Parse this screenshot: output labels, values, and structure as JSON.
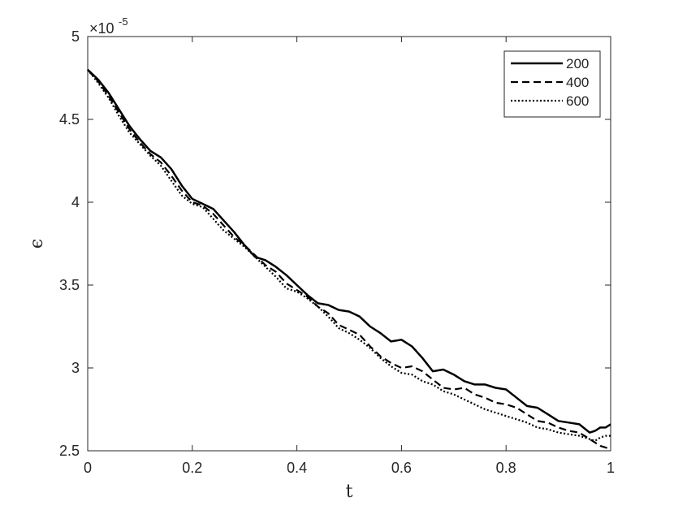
{
  "chart_data": {
    "type": "line",
    "title": "",
    "xlabel": "t",
    "ylabel": "ϵ",
    "exponent_label": "×10",
    "exponent_power": "-5",
    "xlim": [
      0,
      1
    ],
    "ylim": [
      2.5,
      5
    ],
    "x_ticks": [
      0,
      0.2,
      0.4,
      0.6,
      0.8,
      1
    ],
    "x_tick_labels": [
      "0",
      "0.2",
      "0.4",
      "0.6",
      "0.8",
      "1"
    ],
    "y_ticks": [
      2.5,
      3,
      3.5,
      4,
      4.5,
      5
    ],
    "y_tick_labels": [
      "2.5",
      "3",
      "3.5",
      "4",
      "4.5",
      "5"
    ],
    "grid": false,
    "legend_position": "top-right",
    "series": [
      {
        "name": "200",
        "style": "solid",
        "color": "#000000",
        "x": [
          0,
          0.02,
          0.04,
          0.06,
          0.08,
          0.1,
          0.12,
          0.14,
          0.16,
          0.18,
          0.2,
          0.22,
          0.24,
          0.26,
          0.28,
          0.3,
          0.32,
          0.34,
          0.36,
          0.38,
          0.4,
          0.42,
          0.44,
          0.46,
          0.48,
          0.5,
          0.52,
          0.54,
          0.56,
          0.58,
          0.6,
          0.62,
          0.64,
          0.66,
          0.68,
          0.7,
          0.72,
          0.74,
          0.76,
          0.78,
          0.8,
          0.82,
          0.84,
          0.86,
          0.88,
          0.9,
          0.92,
          0.94,
          0.96,
          0.97,
          0.98,
          0.99,
          1.0
        ],
        "y": [
          4.8,
          4.74,
          4.66,
          4.56,
          4.46,
          4.38,
          4.31,
          4.27,
          4.2,
          4.1,
          4.02,
          3.99,
          3.96,
          3.89,
          3.82,
          3.74,
          3.67,
          3.65,
          3.61,
          3.56,
          3.5,
          3.44,
          3.39,
          3.38,
          3.35,
          3.34,
          3.31,
          3.25,
          3.21,
          3.16,
          3.17,
          3.13,
          3.06,
          2.98,
          2.99,
          2.96,
          2.92,
          2.9,
          2.9,
          2.88,
          2.87,
          2.82,
          2.77,
          2.76,
          2.72,
          2.68,
          2.67,
          2.66,
          2.61,
          2.62,
          2.64,
          2.64,
          2.66
        ]
      },
      {
        "name": "400",
        "style": "dashed",
        "color": "#000000",
        "x": [
          0,
          0.02,
          0.04,
          0.06,
          0.08,
          0.1,
          0.12,
          0.14,
          0.16,
          0.18,
          0.2,
          0.22,
          0.24,
          0.26,
          0.28,
          0.3,
          0.32,
          0.34,
          0.36,
          0.38,
          0.4,
          0.42,
          0.44,
          0.46,
          0.48,
          0.5,
          0.52,
          0.54,
          0.56,
          0.58,
          0.6,
          0.62,
          0.64,
          0.66,
          0.68,
          0.7,
          0.72,
          0.74,
          0.76,
          0.78,
          0.8,
          0.82,
          0.84,
          0.86,
          0.88,
          0.9,
          0.92,
          0.94,
          0.96,
          0.97,
          0.98,
          0.99,
          1.0
        ],
        "y": [
          4.8,
          4.73,
          4.64,
          4.54,
          4.44,
          4.36,
          4.29,
          4.24,
          4.16,
          4.07,
          4.0,
          3.98,
          3.93,
          3.86,
          3.79,
          3.74,
          3.68,
          3.62,
          3.58,
          3.51,
          3.47,
          3.43,
          3.37,
          3.33,
          3.26,
          3.23,
          3.2,
          3.13,
          3.07,
          3.03,
          3.0,
          3.01,
          2.98,
          2.93,
          2.88,
          2.87,
          2.88,
          2.84,
          2.82,
          2.79,
          2.78,
          2.76,
          2.72,
          2.68,
          2.67,
          2.64,
          2.62,
          2.61,
          2.57,
          2.55,
          2.53,
          2.52,
          2.51
        ]
      },
      {
        "name": "600",
        "style": "dotted",
        "color": "#000000",
        "x": [
          0,
          0.02,
          0.04,
          0.06,
          0.08,
          0.1,
          0.12,
          0.14,
          0.16,
          0.18,
          0.2,
          0.22,
          0.24,
          0.26,
          0.28,
          0.3,
          0.32,
          0.34,
          0.36,
          0.38,
          0.4,
          0.42,
          0.44,
          0.46,
          0.48,
          0.5,
          0.52,
          0.54,
          0.56,
          0.58,
          0.6,
          0.62,
          0.64,
          0.66,
          0.68,
          0.7,
          0.72,
          0.74,
          0.76,
          0.78,
          0.8,
          0.82,
          0.84,
          0.86,
          0.88,
          0.9,
          0.92,
          0.94,
          0.96,
          0.97,
          0.98,
          0.99,
          1.0
        ],
        "y": [
          4.8,
          4.72,
          4.63,
          4.52,
          4.42,
          4.35,
          4.28,
          4.22,
          4.13,
          4.04,
          3.99,
          3.97,
          3.9,
          3.83,
          3.78,
          3.73,
          3.67,
          3.61,
          3.55,
          3.48,
          3.46,
          3.42,
          3.37,
          3.31,
          3.24,
          3.21,
          3.17,
          3.12,
          3.06,
          3.01,
          2.97,
          2.96,
          2.92,
          2.9,
          2.86,
          2.84,
          2.81,
          2.78,
          2.75,
          2.73,
          2.71,
          2.69,
          2.67,
          2.64,
          2.63,
          2.61,
          2.6,
          2.59,
          2.57,
          2.56,
          2.58,
          2.59,
          2.59
        ]
      }
    ]
  }
}
